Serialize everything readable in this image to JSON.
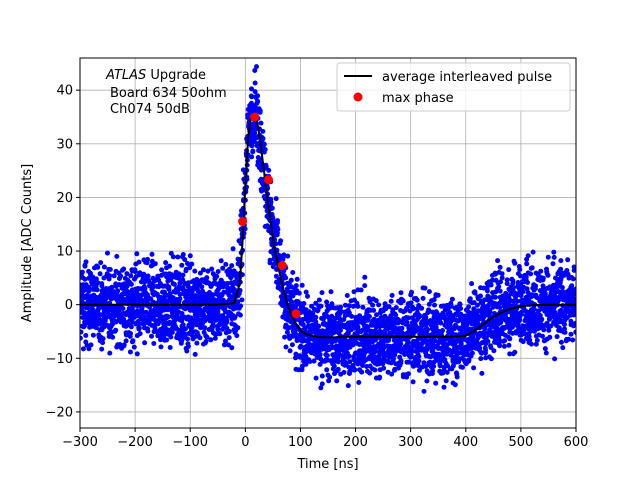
{
  "chart_data": {
    "type": "scatter",
    "title": "",
    "xlabel": "Time [ns]",
    "ylabel": "Amplitude [ADC Counts]",
    "xlim": [
      -300,
      600
    ],
    "ylim": [
      -23,
      46
    ],
    "xticks": [
      -300,
      -200,
      -100,
      0,
      100,
      200,
      300,
      400,
      500,
      600
    ],
    "yticks": [
      -20,
      -10,
      0,
      10,
      20,
      30,
      40
    ],
    "grid": true,
    "legend_position": "top-right",
    "annotation": {
      "line1_italic": "ATLAS",
      "line1_rest": " Upgrade",
      "line2": "Board 634 50ohm",
      "line3": "Ch074 50dB"
    },
    "colors": {
      "samples": "#0000ff",
      "average": "#000000",
      "max_phase": "#ff0000",
      "grid": "#b0b0b0"
    },
    "series": [
      {
        "name": "average interleaved pulse",
        "kind": "line",
        "x": [
          -300,
          -250,
          -200,
          -150,
          -100,
          -50,
          -20,
          -10,
          -5,
          0,
          5,
          10,
          15,
          20,
          25,
          30,
          35,
          40,
          45,
          50,
          55,
          60,
          65,
          70,
          75,
          80,
          85,
          90,
          95,
          100,
          110,
          120,
          130,
          140,
          160,
          180,
          200,
          250,
          300,
          350,
          380,
          400,
          420,
          440,
          460,
          480,
          500,
          520,
          550,
          600
        ],
        "y": [
          0,
          0,
          0,
          0,
          0,
          0,
          0.3,
          4,
          12,
          22,
          31,
          35,
          35.5,
          35,
          32,
          28,
          24,
          20,
          16,
          12.5,
          9.5,
          7,
          4.5,
          2.5,
          0.5,
          -1,
          -2.2,
          -3.2,
          -4,
          -4.8,
          -5.5,
          -5.8,
          -6,
          -6.1,
          -6.1,
          -6,
          -6,
          -6,
          -6,
          -6,
          -6,
          -5.8,
          -4.6,
          -3,
          -1.7,
          -0.8,
          -0.3,
          -0.1,
          0,
          0
        ]
      },
      {
        "name": "max phase",
        "kind": "points",
        "x": [
          -5,
          17,
          42,
          67,
          92
        ],
        "y": [
          15.5,
          35,
          23.3,
          7.3,
          -1.7
        ]
      }
    ],
    "samples": {
      "name": "",
      "baseline_before": 0,
      "baseline_after": -6,
      "noise_half_range": 11
    }
  }
}
